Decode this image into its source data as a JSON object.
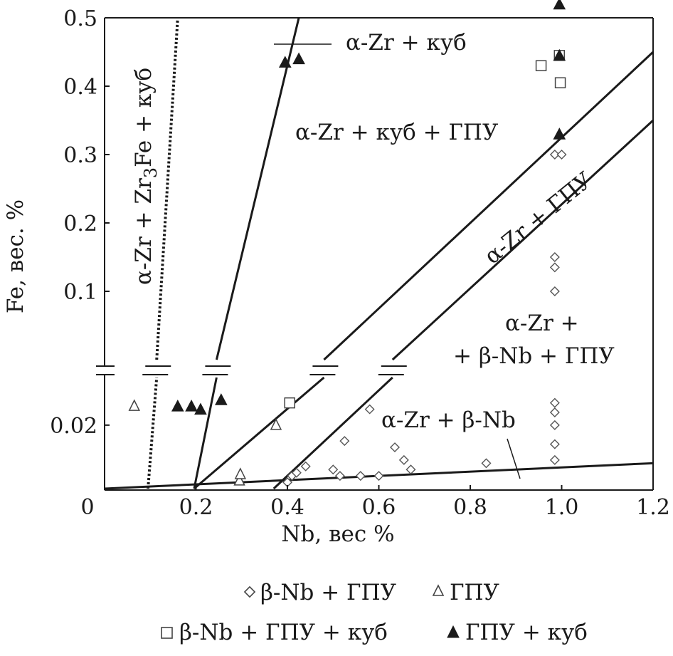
{
  "chart_data": {
    "type": "scatter",
    "title": "",
    "xlabel": "Nb, вес %",
    "ylabel": "Fe, вес. %",
    "xlim": [
      0,
      1.2
    ],
    "x_ticks": [
      "0",
      "0.2",
      "0.4",
      "0.6",
      "0.8",
      "1.0",
      "1.2"
    ],
    "y_axis_broken": true,
    "y_lower_ticks": [
      "0.02"
    ],
    "y_upper_ticks": [
      "0.1",
      "0.2",
      "0.3",
      "0.4",
      "0.5"
    ],
    "ylim_upper": [
      0.0,
      0.5
    ],
    "ylim_lower": [
      0.0,
      0.035
    ],
    "boundaries": [
      {
        "style": "dotted",
        "lower": [
          [
            0.095,
            0.0
          ],
          [
            0.114,
            0.035
          ]
        ],
        "upper": [
          [
            0.114,
            0.0
          ],
          [
            0.16,
            0.5
          ]
        ]
      },
      {
        "style": "solid",
        "lower": [
          [
            0.196,
            0.0
          ],
          [
            0.245,
            0.035
          ]
        ],
        "upper": [
          [
            0.245,
            0.0
          ],
          [
            0.425,
            0.5
          ]
        ]
      },
      {
        "style": "solid",
        "lower": [
          [
            0.196,
            0.0
          ],
          [
            0.48,
            0.035
          ]
        ],
        "upper": [
          [
            0.48,
            0.0
          ],
          [
            1.2,
            0.45
          ]
        ]
      },
      {
        "style": "solid",
        "lower": [
          [
            0.37,
            0.0
          ],
          [
            0.63,
            0.035
          ]
        ],
        "upper": [
          [
            0.63,
            0.0
          ],
          [
            1.2,
            0.35
          ]
        ]
      },
      {
        "style": "solid",
        "lower": [
          [
            0.0,
            0.0
          ],
          [
            1.2,
            0.008
          ]
        ]
      }
    ],
    "regions": [
      {
        "lines": [
          "α-Zr + Zr",
          "3",
          "Fe + куб"
        ]
      },
      {
        "lines": [
          "α-Zr + куб"
        ]
      },
      {
        "lines": [
          "α-Zr + куб + ГПУ"
        ]
      },
      {
        "lines": [
          "α-Zr + ГПУ"
        ]
      },
      {
        "lines": [
          "α-Zr +",
          "+ β-Nb + ГПУ"
        ]
      },
      {
        "lines": [
          "α-Zr + β-Nb"
        ]
      }
    ],
    "series": [
      {
        "name": "β-Nb + ГПУ",
        "marker": "diamond-open",
        "points": [
          {
            "x": 0.4,
            "y": 0.002,
            "part": "lower"
          },
          {
            "x": 0.41,
            "y": 0.004,
            "part": "lower"
          },
          {
            "x": 0.42,
            "y": 0.005,
            "part": "lower"
          },
          {
            "x": 0.44,
            "y": 0.007,
            "part": "lower"
          },
          {
            "x": 0.5,
            "y": 0.006,
            "part": "lower"
          },
          {
            "x": 0.515,
            "y": 0.004,
            "part": "lower"
          },
          {
            "x": 0.525,
            "y": 0.015,
            "part": "lower"
          },
          {
            "x": 0.56,
            "y": 0.004,
            "part": "lower"
          },
          {
            "x": 0.58,
            "y": 0.025,
            "part": "lower"
          },
          {
            "x": 0.6,
            "y": 0.004,
            "part": "lower"
          },
          {
            "x": 0.635,
            "y": 0.013,
            "part": "lower"
          },
          {
            "x": 0.655,
            "y": 0.009,
            "part": "lower"
          },
          {
            "x": 0.67,
            "y": 0.006,
            "part": "lower"
          },
          {
            "x": 0.835,
            "y": 0.008,
            "part": "lower"
          },
          {
            "x": 0.985,
            "y": 0.027,
            "part": "lower"
          },
          {
            "x": 0.985,
            "y": 0.024,
            "part": "lower"
          },
          {
            "x": 0.985,
            "y": 0.02,
            "part": "lower"
          },
          {
            "x": 0.985,
            "y": 0.014,
            "part": "lower"
          },
          {
            "x": 0.985,
            "y": 0.009,
            "part": "lower"
          },
          {
            "x": 0.985,
            "y": 0.1,
            "part": "upper"
          },
          {
            "x": 0.985,
            "y": 0.135,
            "part": "upper"
          },
          {
            "x": 0.985,
            "y": 0.15,
            "part": "upper"
          },
          {
            "x": 0.985,
            "y": 0.3,
            "part": "upper"
          },
          {
            "x": 1.0,
            "y": 0.3,
            "part": "upper"
          }
        ]
      },
      {
        "name": "ГПУ",
        "marker": "triangle-open",
        "points": [
          {
            "x": 0.065,
            "y": 0.026,
            "part": "lower"
          },
          {
            "x": 0.295,
            "y": 0.0025,
            "part": "lower"
          },
          {
            "x": 0.297,
            "y": 0.0045,
            "part": "lower"
          },
          {
            "x": 0.375,
            "y": 0.02,
            "part": "lower"
          }
        ]
      },
      {
        "name": "β-Nb + ГПУ + куб",
        "marker": "square-open",
        "points": [
          {
            "x": 0.405,
            "y": 0.027,
            "part": "lower"
          },
          {
            "x": 0.955,
            "y": 0.43,
            "part": "upper"
          },
          {
            "x": 0.995,
            "y": 0.445,
            "part": "upper"
          },
          {
            "x": 0.997,
            "y": 0.405,
            "part": "upper"
          }
        ]
      },
      {
        "name": "ГПУ + куб",
        "marker": "triangle-filled",
        "points": [
          {
            "x": 0.16,
            "y": 0.026,
            "part": "lower"
          },
          {
            "x": 0.19,
            "y": 0.026,
            "part": "lower"
          },
          {
            "x": 0.21,
            "y": 0.025,
            "part": "lower"
          },
          {
            "x": 0.255,
            "y": 0.028,
            "part": "lower"
          },
          {
            "x": 0.395,
            "y": 0.435,
            "part": "upper"
          },
          {
            "x": 0.425,
            "y": 0.44,
            "part": "upper"
          },
          {
            "x": 0.995,
            "y": 0.52,
            "part": "upper"
          },
          {
            "x": 0.995,
            "y": 0.445,
            "part": "upper"
          },
          {
            "x": 0.995,
            "y": 0.33,
            "part": "upper"
          }
        ]
      }
    ],
    "legend_placement": "bottom"
  }
}
